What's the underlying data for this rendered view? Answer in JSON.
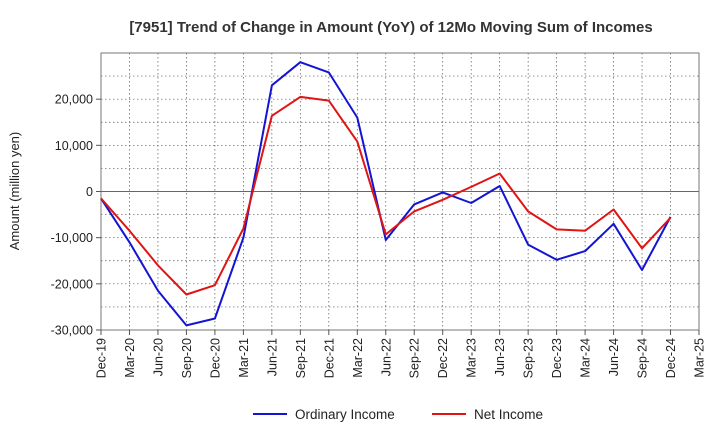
{
  "chart_data": {
    "type": "line",
    "title": "[7951]  Trend of Change in Amount (YoY) of 12Mo Moving Sum of Incomes",
    "xlabel": "",
    "ylabel": "Amount (million yen)",
    "ylim": [
      -30000,
      30000
    ],
    "yticks": [
      20000,
      10000,
      0,
      -10000,
      -20000,
      -30000
    ],
    "ytick_labels": [
      "20,000",
      "10,000",
      "0",
      "-10,000",
      "-20,000",
      "-30,000"
    ],
    "categories": [
      "Dec-19",
      "Mar-20",
      "Jun-20",
      "Sep-20",
      "Dec-20",
      "Mar-21",
      "Jun-21",
      "Sep-21",
      "Dec-21",
      "Mar-22",
      "Jun-22",
      "Sep-22",
      "Dec-22",
      "Mar-23",
      "Jun-23",
      "Sep-23",
      "Dec-23",
      "Mar-24",
      "Jun-24",
      "Sep-24",
      "Dec-24",
      "Mar-25"
    ],
    "series": [
      {
        "name": "Ordinary Income",
        "color": "#1414d2",
        "values": [
          -1500,
          -11000,
          -21500,
          -29000,
          -27500,
          -10000,
          23000,
          28000,
          25800,
          16000,
          -10500,
          -2800,
          -200,
          -2500,
          1200,
          -11500,
          -14800,
          -12900,
          -7000,
          -17000,
          -5500,
          null
        ]
      },
      {
        "name": "Net Income",
        "color": "#e01414",
        "values": [
          -1500,
          -8500,
          -16000,
          -22300,
          -20300,
          -8000,
          16400,
          20500,
          19700,
          10800,
          -9300,
          -4300,
          -1800,
          1000,
          3900,
          -4300,
          -8200,
          -8500,
          -3900,
          -12300,
          -5700,
          null
        ]
      }
    ],
    "legend_position": "bottom",
    "grid": true
  }
}
